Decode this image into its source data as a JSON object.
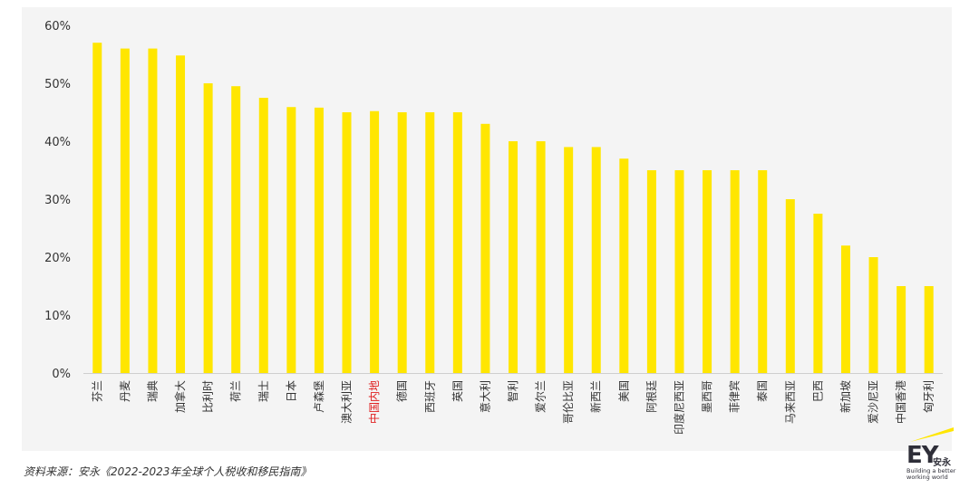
{
  "chart_data": {
    "type": "bar",
    "title": "",
    "xlabel": "",
    "ylabel": "",
    "ylim": [
      0,
      60
    ],
    "yticks": [
      0,
      10,
      20,
      30,
      40,
      50,
      60
    ],
    "ytick_labels": [
      "0%",
      "10%",
      "20%",
      "30%",
      "40%",
      "50%",
      "60%"
    ],
    "grid": false,
    "categories": [
      "芬兰",
      "丹麦",
      "瑞典",
      "加拿大",
      "比利时",
      "荷兰",
      "瑞士",
      "日本",
      "卢森堡",
      "澳大利亚",
      "中国内地",
      "德国",
      "西班牙",
      "英国",
      "意大利",
      "智利",
      "爱尔兰",
      "哥伦比亚",
      "新西兰",
      "美国",
      "阿根廷",
      "印度尼西亚",
      "墨西哥",
      "菲律宾",
      "泰国",
      "马来西亚",
      "巴西",
      "新加坡",
      "爱沙尼亚",
      "中国香港",
      "匈牙利"
    ],
    "values": [
      57,
      56,
      56,
      54.8,
      50,
      49.5,
      47.5,
      45.9,
      45.8,
      45,
      45.2,
      45,
      45,
      45,
      43,
      40,
      40,
      39,
      39,
      37,
      35,
      35,
      35,
      35,
      35,
      30,
      27.5,
      22,
      20,
      15,
      15
    ],
    "highlight_category": "中国内地",
    "bar_color": "#ffe600",
    "highlight_label_color": "#e02020"
  },
  "footer": {
    "source": "资料来源：安永《2022-2023年全球个人税收和移民指南》"
  },
  "logo": {
    "mark": "EY",
    "name_cn": "安永",
    "tagline": "Building a better working world",
    "color": "#2e2e38",
    "beam_color": "#ffe600"
  }
}
